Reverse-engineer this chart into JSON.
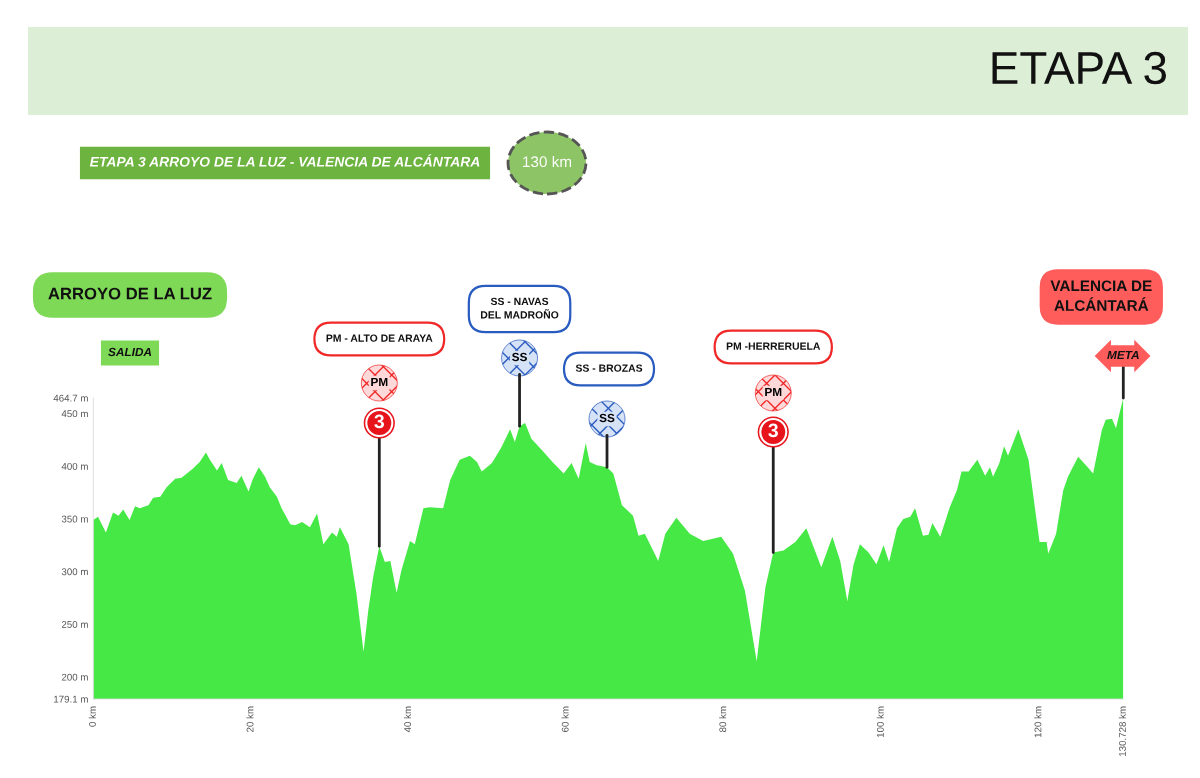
{
  "chart_data": {
    "type": "area",
    "title": "ETAPA 3",
    "subtitle": "ETAPA 3 ARROYO DE LA LUZ - VALENCIA DE ALCÁNTARA",
    "x": [
      0,
      0.6,
      1.6,
      2.5,
      3.2,
      3.8,
      4.6,
      5.3,
      5.9,
      7.0,
      7.6,
      8.5,
      9.3,
      10.4,
      11.2,
      12.7,
      13.5,
      14.3,
      14.8,
      15.7,
      16.3,
      17.1,
      18.2,
      18.8,
      19.7,
      20.2,
      21.0,
      21.8,
      22.4,
      23.3,
      23.9,
      25.0,
      25.6,
      26.5,
      27.5,
      28.4,
      29.2,
      30.3,
      30.9,
      31.3,
      32.4,
      33.4,
      34.3,
      34.9,
      35.5,
      36.3,
      37.0,
      37.7,
      38.5,
      39.1,
      40.2,
      40.8,
      41.9,
      42.7,
      44.4,
      45.3,
      46.5,
      47.8,
      48.7,
      49.3,
      50.6,
      51.8,
      52.9,
      53.5,
      54.1,
      54.8,
      55.6,
      57.1,
      58.4,
      59.7,
      60.7,
      61.6,
      62.5,
      63.0,
      63.9,
      65.2,
      66.0,
      67.1,
      68.5,
      69.2,
      70.0,
      71.7,
      72.6,
      74.0,
      75.7,
      77.4,
      79.7,
      81.2,
      82.7,
      84.2,
      85.3,
      86.3,
      87.6,
      89.1,
      90.5,
      92.4,
      93.8,
      94.8,
      95.7,
      96.5,
      97.3,
      98.4,
      99.4,
      100.3,
      101.0,
      102.0,
      102.8,
      103.7,
      104.3,
      105.3,
      106.0,
      106.5,
      107.5,
      108.7,
      109.6,
      110.2,
      111.1,
      112.2,
      113.2,
      113.8,
      114.2,
      115.0,
      115.6,
      116.1,
      117.4,
      118.7,
      119.5,
      120.1,
      121.0,
      121.2,
      122.2,
      123.1,
      123.7,
      125.0,
      126.1,
      126.9,
      128.0,
      128.5,
      129.3,
      129.8,
      130.3,
      130.728
    ],
    "values": [
      349,
      352,
      337,
      356,
      353,
      359,
      349,
      362,
      360,
      363,
      370,
      371,
      380,
      388,
      389,
      398,
      404,
      413,
      406,
      396,
      403,
      387,
      384,
      391,
      376,
      387,
      399,
      390,
      380,
      371,
      360,
      345,
      344,
      347,
      342,
      355,
      326,
      337,
      333,
      342,
      326,
      279,
      224,
      263,
      294,
      324,
      309,
      310,
      280,
      301,
      329,
      326,
      360,
      361,
      360,
      387,
      406,
      410,
      404,
      395,
      403,
      418,
      435,
      423,
      438,
      441,
      426,
      414,
      403,
      393,
      403,
      388,
      422,
      404,
      401,
      399,
      393,
      363,
      353,
      334,
      336,
      310,
      336,
      351,
      336,
      329,
      333,
      317,
      282,
      215,
      285,
      318,
      320,
      328,
      341,
      304,
      333,
      310,
      272,
      307,
      326,
      318,
      307,
      325,
      309,
      341,
      350,
      352,
      360,
      334,
      335,
      346,
      333,
      361,
      377,
      395,
      395,
      406,
      391,
      399,
      390,
      403,
      419,
      410,
      435,
      406,
      361,
      328,
      328,
      317,
      336,
      377,
      390,
      409,
      400,
      393,
      434,
      444,
      445,
      436,
      452,
      464.7
    ],
    "color": "#45e845",
    "xlim": [
      0,
      130.728
    ],
    "ylim": [
      179.1,
      464.7
    ],
    "xticks": [
      {
        "value": 0,
        "label": "0 km"
      },
      {
        "value": 20,
        "label": "20 km"
      },
      {
        "value": 40,
        "label": "40 km"
      },
      {
        "value": 60,
        "label": "60 km"
      },
      {
        "value": 80,
        "label": "80 km"
      },
      {
        "value": 100,
        "label": "100 km"
      },
      {
        "value": 120,
        "label": "120 km"
      },
      {
        "value": 130.728,
        "label": "130.728 km"
      }
    ],
    "yticks": [
      {
        "value": 179.1,
        "label": "179.1 m"
      },
      {
        "value": 200,
        "label": "200 m"
      },
      {
        "value": 250,
        "label": "250 m"
      },
      {
        "value": 300,
        "label": "300 m"
      },
      {
        "value": 350,
        "label": "350 m"
      },
      {
        "value": 400,
        "label": "400 m"
      },
      {
        "value": 450,
        "label": "450 m"
      },
      {
        "value": 464.7,
        "label": "464.7 m"
      }
    ],
    "annotations": [
      "PM - ALTO DE ARAYA",
      "PM",
      {
        "text": "3",
        "x": 36.3,
        "y": 324
      },
      "SS - NAVAS\nDEL MADROÑO",
      {
        "text": "SS",
        "x": 54.1,
        "y": 438
      },
      "SS - BROZAS",
      {
        "text": "SS",
        "x": 65.2,
        "y": 399
      },
      "PM -HERRERUELA",
      "PM",
      {
        "text": "3",
        "x": 86.3,
        "y": 318
      },
      "VALENCIA DE\nALCÁNTARÁ",
      {
        "text": "META",
        "x": 130.728,
        "y": 464.7
      },
      "130 km",
      "ARROYO DE LA LUZ",
      "SALIDA"
    ]
  }
}
